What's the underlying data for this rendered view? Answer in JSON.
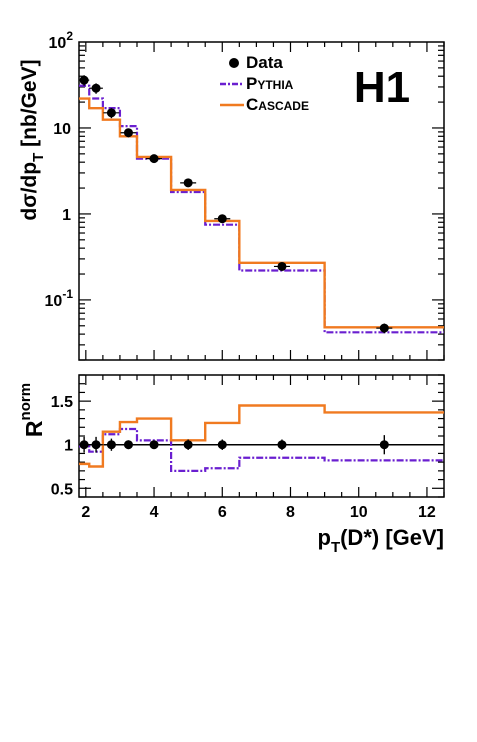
{
  "chart_data": {
    "type": "line",
    "experiment": "H1",
    "xlabel": {
      "main": "p",
      "sub": "T",
      "rest": "(D*) [GeV]"
    },
    "xlim": [
      1.8,
      12.5
    ],
    "x_ticks": [
      2,
      4,
      6,
      8,
      10,
      12
    ],
    "legend_position": "top-right",
    "legend": [
      {
        "key": "data",
        "label": "Data"
      },
      {
        "key": "pythia",
        "label_parts": [
          "P",
          "YTHIA"
        ]
      },
      {
        "key": "cascade",
        "label_parts": [
          "C",
          "ASCADE"
        ]
      }
    ],
    "colors": {
      "data": "#000000",
      "pythia": "#6a1fd0",
      "cascade": "#f07a20"
    },
    "bin_edges": [
      1.8,
      2.1,
      2.5,
      3.0,
      3.5,
      4.5,
      5.5,
      6.5,
      9.0,
      12.5
    ],
    "bin_centers": [
      1.95,
      2.3,
      2.75,
      3.25,
      4.0,
      5.0,
      6.0,
      7.75,
      10.75
    ],
    "top_panel": {
      "ylabel": {
        "pre": "d",
        "sigma": "σ",
        "mid": "/dp",
        "sub": "T",
        "rest": " [nb/GeV]"
      },
      "yscale": "log",
      "ylim": [
        0.02,
        100
      ],
      "y_ticks": [
        {
          "value": 0.1,
          "base": "10",
          "exp": "-1"
        },
        {
          "value": 1,
          "label": "1"
        },
        {
          "value": 10,
          "label": "10"
        },
        {
          "value": 100,
          "base": "10",
          "exp": "2"
        }
      ],
      "data": [
        36,
        29,
        15,
        8.8,
        4.4,
        2.3,
        0.88,
        0.245,
        0.047
      ],
      "data_err": [
        5,
        4,
        2,
        1.0,
        0.4,
        0.2,
        0.08,
        0.02,
        0.006
      ],
      "pythia": [
        31,
        22,
        17,
        10.5,
        4.4,
        1.8,
        0.75,
        0.22,
        0.042
      ],
      "cascade": [
        22,
        17,
        12.5,
        8.0,
        4.6,
        1.9,
        0.83,
        0.27,
        0.048
      ]
    },
    "bottom_panel": {
      "ylabel": {
        "main": "R",
        "sup": "norm"
      },
      "ylim": [
        0.4,
        1.8
      ],
      "y_ticks": [
        {
          "value": 0.5,
          "label": "0.5"
        },
        {
          "value": 1,
          "label": "1"
        },
        {
          "value": 1.5,
          "label": "1.5"
        }
      ],
      "reference_line": 1,
      "data": [
        1.0,
        1.0,
        1.0,
        1.0,
        1.0,
        1.0,
        1.0,
        1.0,
        1.0
      ],
      "data_err": [
        0.09,
        0.09,
        0.07,
        0.05,
        0.04,
        0.06,
        0.06,
        0.06,
        0.11
      ],
      "pythia": [
        0.98,
        0.92,
        1.12,
        1.18,
        1.05,
        0.7,
        0.73,
        0.85,
        0.82
      ],
      "cascade": [
        0.78,
        0.75,
        1.15,
        1.26,
        1.3,
        1.05,
        1.25,
        1.45,
        1.37
      ]
    }
  }
}
